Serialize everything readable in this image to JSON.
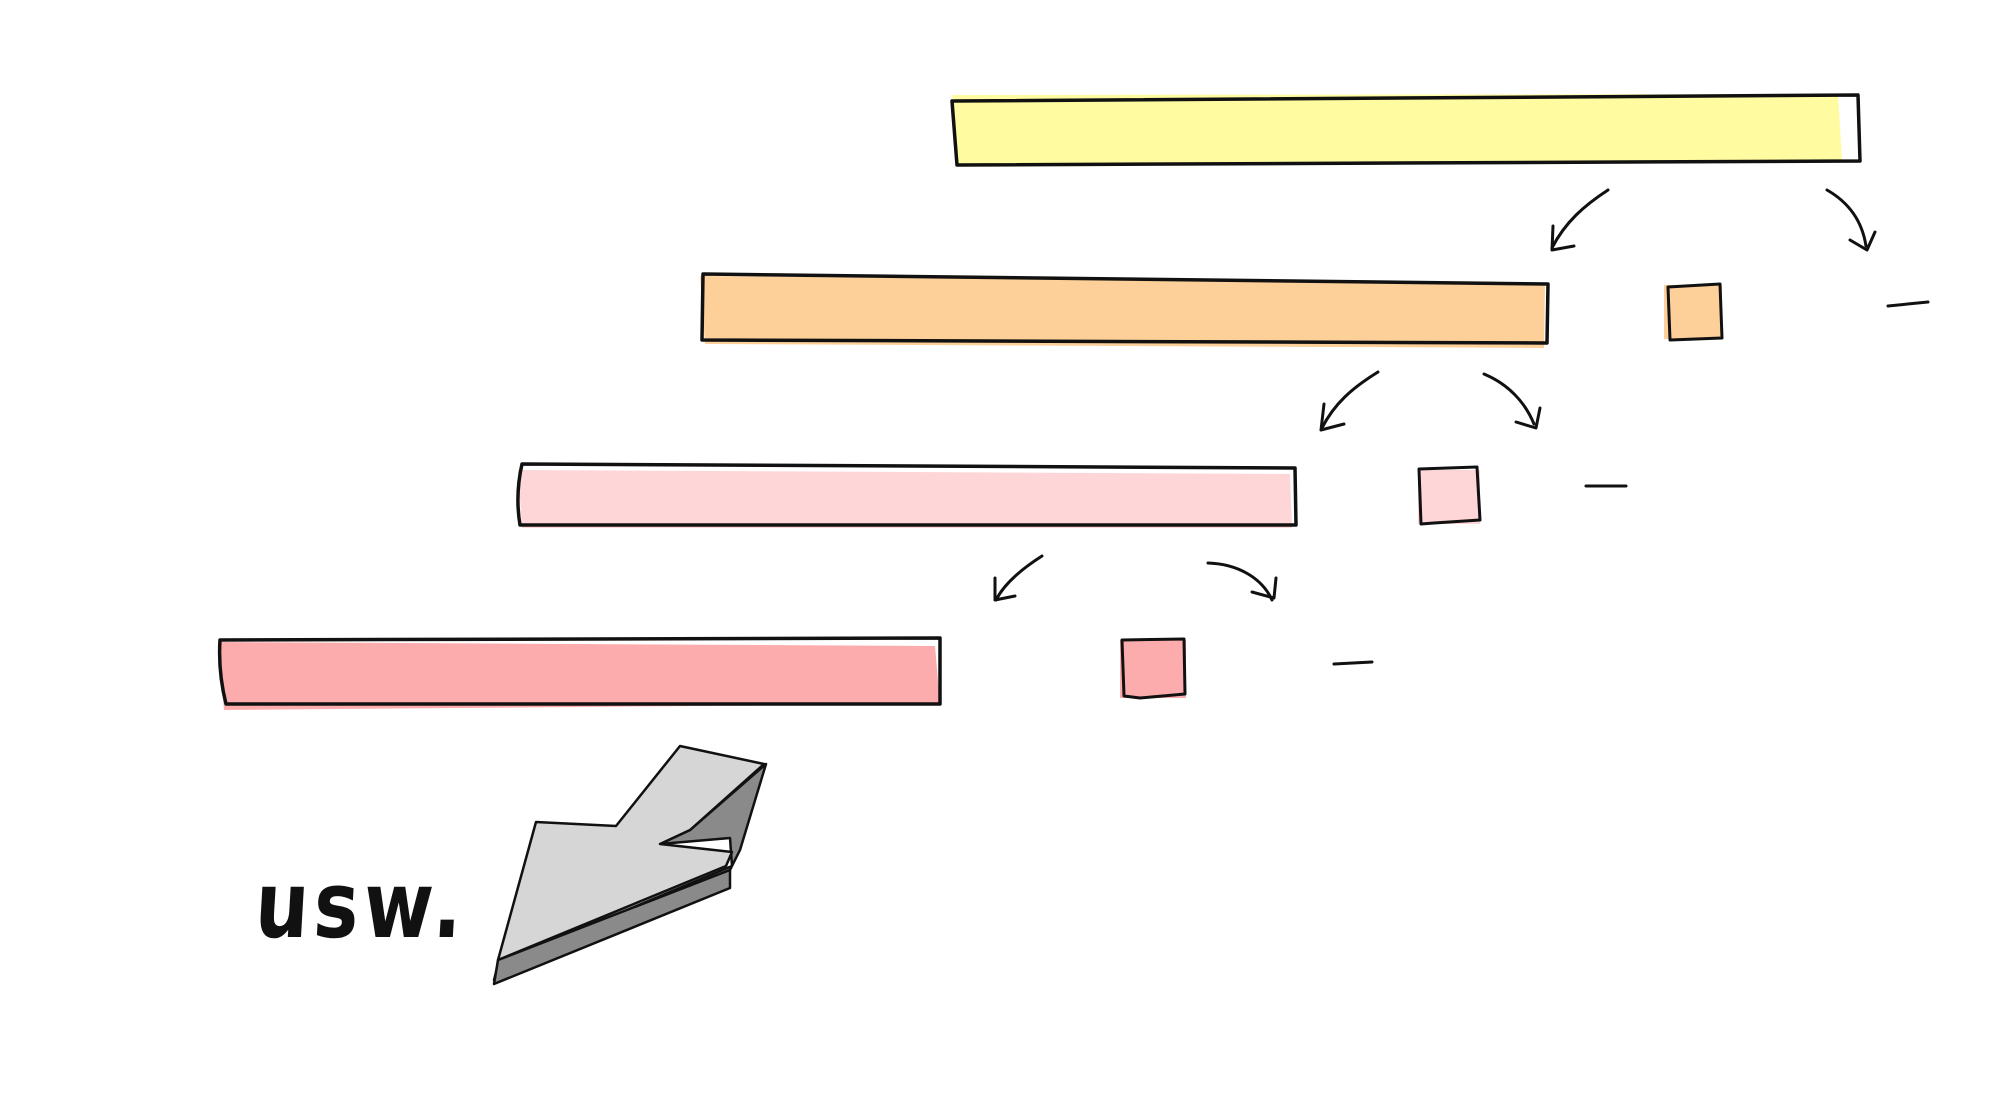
{
  "diagram": {
    "label": "usw.",
    "levels": [
      {
        "name": "level-1",
        "color": "#fffba0",
        "splits_into": "fragment-and-dash"
      },
      {
        "name": "level-2",
        "color": "#fdd09a",
        "splits_into": "fragment-and-dash"
      },
      {
        "name": "level-3",
        "color": "#fed6d8",
        "splits_into": "fragment-and-dash"
      },
      {
        "name": "level-4",
        "color": "#fdacad",
        "splits_into": "fragment-and-dash"
      }
    ],
    "stroke_color": "#111111",
    "continuation_arrow_color": "#d6d6d6",
    "continuation_arrow_shadow": "#8a8a8a",
    "icons": [
      "split-arrow-icon",
      "continuation-arrow-icon"
    ]
  }
}
